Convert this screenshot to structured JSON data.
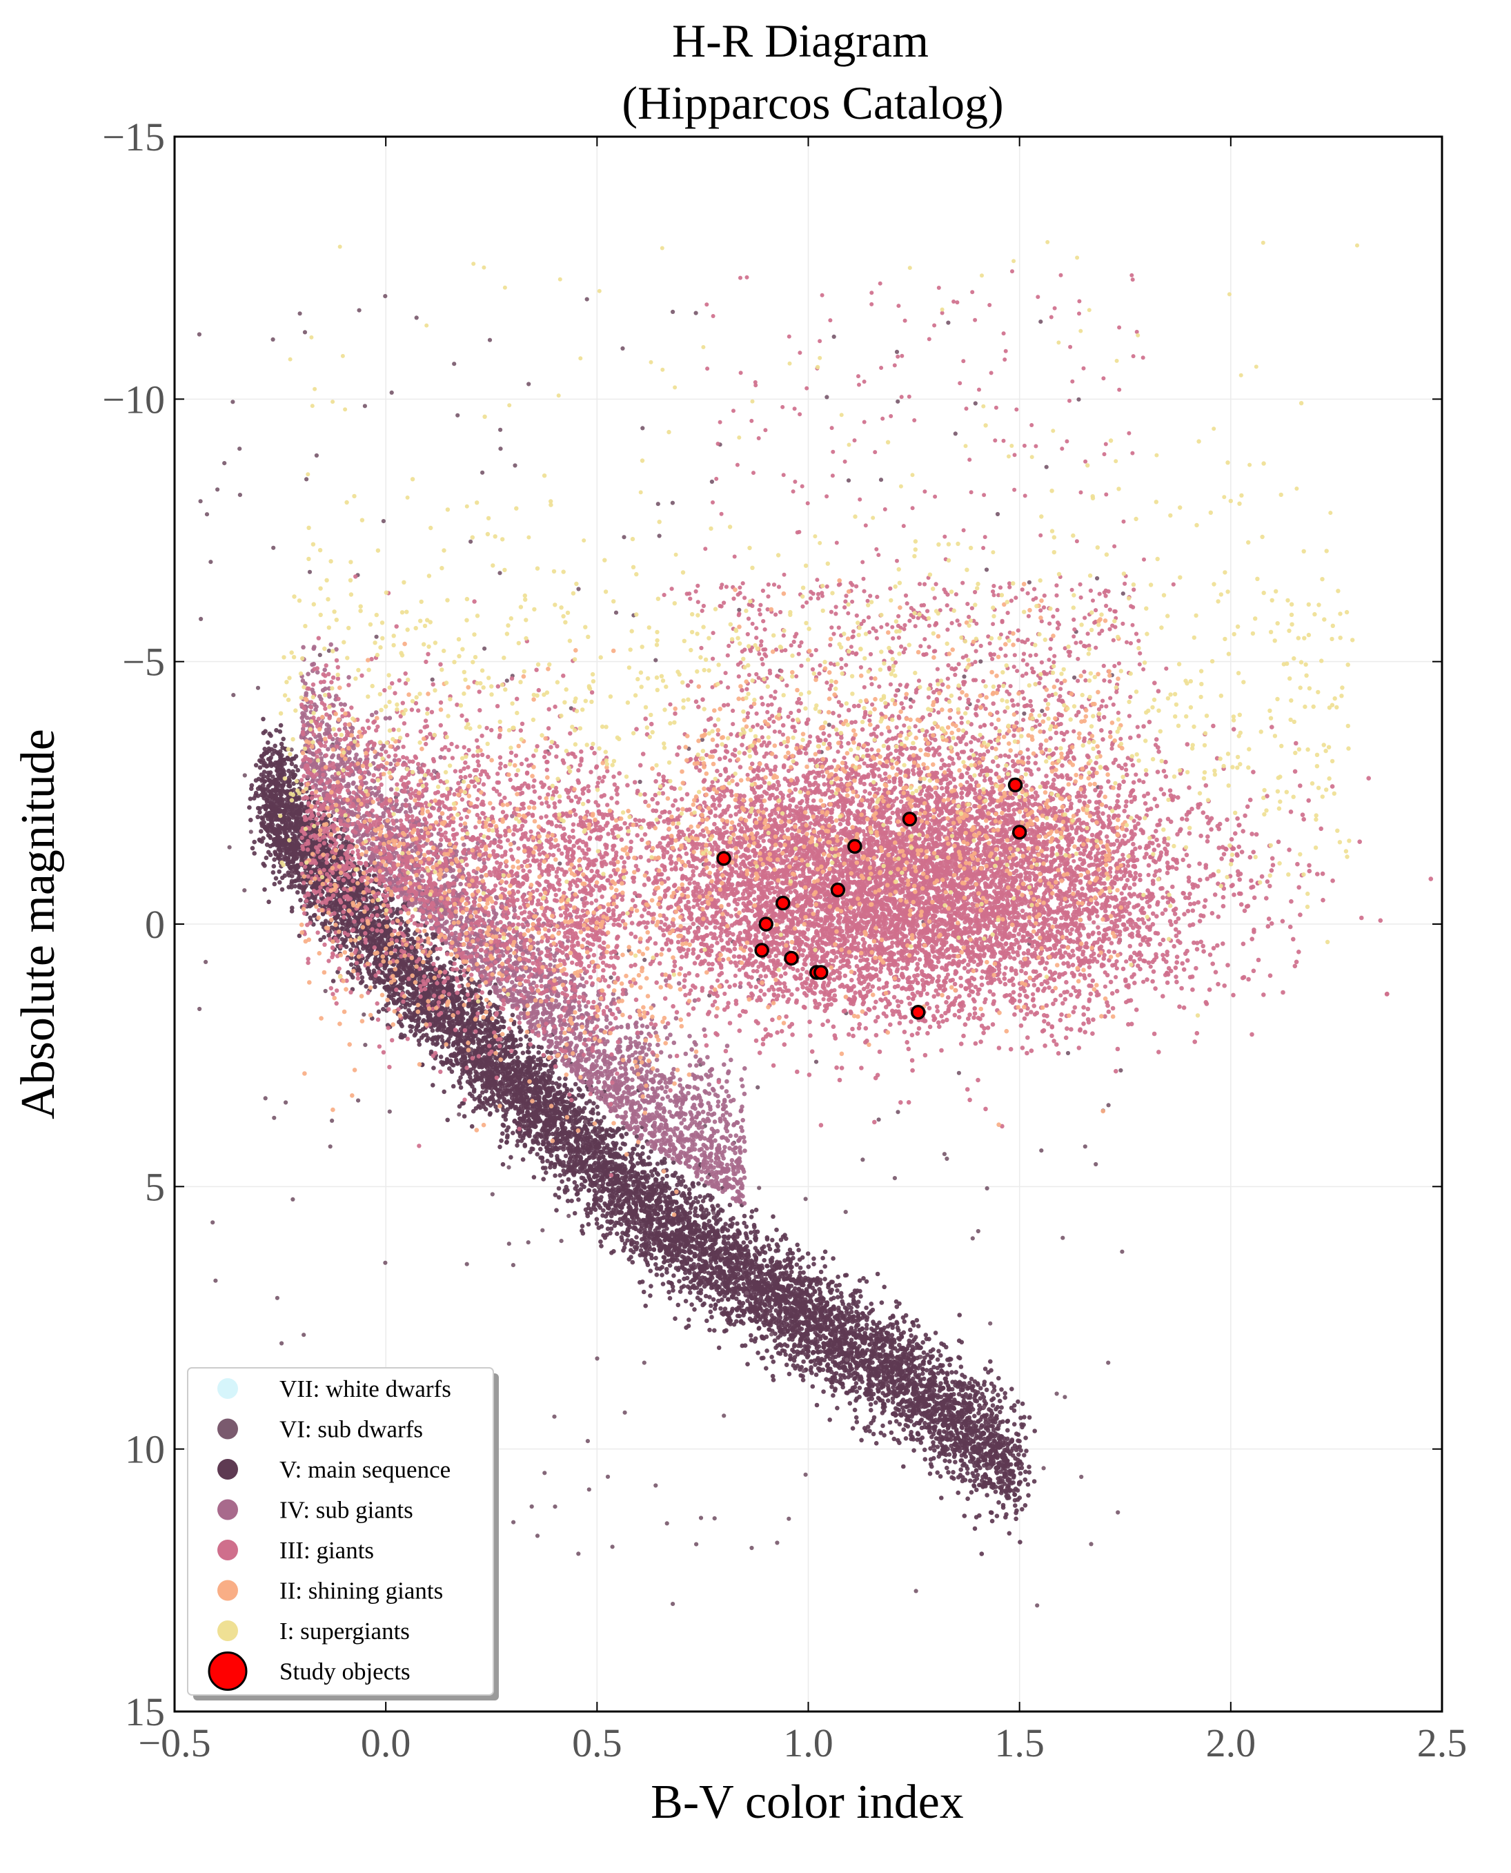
{
  "chart_data": {
    "type": "scatter",
    "title": "H-R Diagram",
    "subtitle": "(Hipparcos Catalog)",
    "xlabel": "B-V color index",
    "ylabel": "Absolute magnitude",
    "xlim": [
      -0.5,
      2.5
    ],
    "ylim": [
      15,
      -15
    ],
    "y_inverted": true,
    "grid": true,
    "legend_position": "lower-left",
    "x_ticks": [
      "−0.5",
      "0.0",
      "0.5",
      "1.0",
      "1.5",
      "2.0",
      "2.5"
    ],
    "x_tick_values": [
      -0.5,
      0.0,
      0.5,
      1.0,
      1.5,
      2.0,
      2.5
    ],
    "y_ticks": [
      "−15",
      "−10",
      "−5",
      "0",
      "5",
      "10",
      "15"
    ],
    "y_tick_values": [
      -15,
      -10,
      -5,
      0,
      5,
      10,
      15
    ],
    "series": [
      {
        "name": "VII: white dwarfs",
        "color": "#d6f5fb",
        "population": "none"
      },
      {
        "name": "VI: sub dwarfs",
        "color": "#7a5a6e",
        "population": "sparse"
      },
      {
        "name": "V: main sequence",
        "color": "#5e3a52",
        "population": "main_sequence"
      },
      {
        "name": "IV: sub giants",
        "color": "#a86a8c",
        "population": "subgiant_band"
      },
      {
        "name": "III: giants",
        "color": "#cf6f8c",
        "population": "red_clump"
      },
      {
        "name": "II: shining giants",
        "color": "#f9ae86",
        "population": "bright_giants"
      },
      {
        "name": "I: supergiants",
        "color": "#efe094",
        "population": "supergiants"
      }
    ],
    "study_objects": {
      "name": "Study objects",
      "color": "#ff0000",
      "edge_color": "#000000",
      "points": [
        {
          "x": 0.8,
          "y": -1.25
        },
        {
          "x": 0.89,
          "y": 0.5
        },
        {
          "x": 0.9,
          "y": 0.0
        },
        {
          "x": 0.94,
          "y": -0.4
        },
        {
          "x": 0.96,
          "y": 0.65
        },
        {
          "x": 1.02,
          "y": 0.92
        },
        {
          "x": 1.03,
          "y": 0.92
        },
        {
          "x": 1.07,
          "y": -0.65
        },
        {
          "x": 1.11,
          "y": -1.48
        },
        {
          "x": 1.24,
          "y": -2.0
        },
        {
          "x": 1.26,
          "y": 1.68
        },
        {
          "x": 1.49,
          "y": -2.65
        },
        {
          "x": 1.5,
          "y": -1.75
        }
      ]
    }
  }
}
